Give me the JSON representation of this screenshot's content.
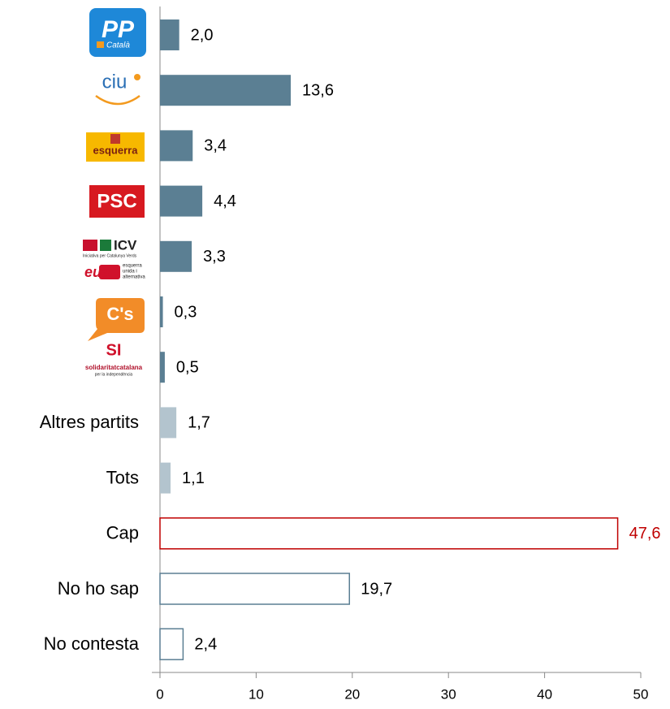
{
  "chart_data": {
    "type": "bar",
    "orientation": "horizontal",
    "categories": [
      "PP",
      "ciu",
      "esquerra",
      "PSC",
      "ICV",
      "C's",
      "SI",
      "Altres partits",
      "Tots",
      "Cap",
      "No ho sap",
      "No contesta"
    ],
    "logo_texts": [
      [
        "Català"
      ],
      [],
      [],
      [],
      [
        "Iniciativa per Catalunya Verds",
        "eua",
        "esquerra",
        "unida i",
        "alternativa"
      ],
      [],
      [
        "solidaritatcatalana",
        "per la independència"
      ]
    ],
    "values": [
      2.0,
      13.6,
      3.4,
      4.4,
      3.3,
      0.3,
      0.5,
      1.7,
      1.1,
      47.6,
      19.7,
      2.4
    ],
    "value_labels": [
      "2,0",
      "13,6",
      "3,4",
      "4,4",
      "3,3",
      "0,3",
      "0,5",
      "1,7",
      "1,1",
      "47,6",
      "19,7",
      "2,4"
    ],
    "colors": [
      "#5b7f93",
      "#5b7f93",
      "#5b7f93",
      "#5b7f93",
      "#5b7f93",
      "#5b7f93",
      "#5b7f93",
      "#b3c4ce",
      "#b3c4ce",
      "#c00000",
      "#5b7f93",
      "#5b7f93"
    ],
    "hollow": [
      false,
      false,
      false,
      false,
      false,
      false,
      false,
      false,
      false,
      true,
      true,
      true
    ],
    "label_colors": [
      "#000000",
      "#000000",
      "#000000",
      "#000000",
      "#000000",
      "#000000",
      "#000000",
      "#000000",
      "#000000",
      "#c00000",
      "#000000",
      "#000000"
    ],
    "xlim": [
      0,
      50
    ],
    "xticks": [
      0,
      10,
      20,
      30,
      40,
      50
    ]
  }
}
